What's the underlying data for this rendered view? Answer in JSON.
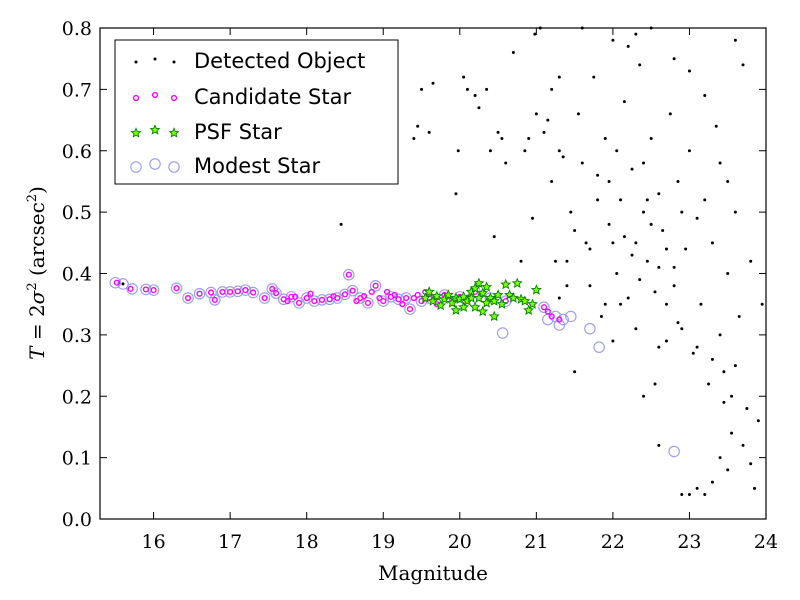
{
  "chart_data": {
    "type": "scatter",
    "xlabel": "Magnitude",
    "ylabel_parts": {
      "prefix": "T",
      "equals": " = 2",
      "sigma": "σ",
      "sigma_exp": "2",
      "unit_open": " (arcsec",
      "unit_exp": "2",
      "unit_close": ")"
    },
    "xlim": [
      15.3,
      24.0
    ],
    "ylim": [
      0.0,
      0.8
    ],
    "xticks": [
      16,
      17,
      18,
      19,
      20,
      21,
      22,
      23,
      24
    ],
    "yticks": [
      0.0,
      0.1,
      0.2,
      0.3,
      0.4,
      0.5,
      0.6,
      0.7,
      0.8
    ],
    "ytick_labels": [
      "0.0",
      "0.1",
      "0.2",
      "0.3",
      "0.4",
      "0.5",
      "0.6",
      "0.7",
      "0.8"
    ],
    "grid": false,
    "legend_position": "top-left",
    "series": [
      {
        "name": "Detected Object",
        "marker": "dot",
        "color": "#000000",
        "points": [
          [
            15.55,
            0.385
          ],
          [
            15.6,
            0.383
          ],
          [
            18.45,
            0.48
          ],
          [
            19.4,
            0.62
          ],
          [
            19.45,
            0.64
          ],
          [
            19.5,
            0.7
          ],
          [
            19.6,
            0.63
          ],
          [
            19.65,
            0.71
          ],
          [
            19.95,
            0.53
          ],
          [
            19.98,
            0.6
          ],
          [
            20.05,
            0.72
          ],
          [
            20.1,
            0.7
          ],
          [
            20.2,
            0.69
          ],
          [
            20.25,
            0.67
          ],
          [
            20.35,
            0.7
          ],
          [
            20.4,
            0.6
          ],
          [
            20.45,
            0.46
          ],
          [
            20.5,
            0.63
          ],
          [
            20.55,
            0.62
          ],
          [
            20.6,
            0.58
          ],
          [
            20.7,
            0.76
          ],
          [
            20.8,
            0.42
          ],
          [
            20.85,
            0.6
          ],
          [
            20.9,
            0.62
          ],
          [
            20.95,
            0.49
          ],
          [
            20.98,
            0.79
          ],
          [
            21.05,
            0.8
          ],
          [
            21.1,
            0.63
          ],
          [
            21.15,
            0.65
          ],
          [
            21.2,
            0.55
          ],
          [
            21.25,
            0.42
          ],
          [
            21.3,
            0.72
          ],
          [
            21.3,
            0.36
          ],
          [
            21.35,
            0.59
          ],
          [
            21.4,
            0.38
          ],
          [
            21.45,
            0.5
          ],
          [
            21.5,
            0.24
          ],
          [
            21.55,
            0.66
          ],
          [
            21.6,
            0.8
          ],
          [
            21.65,
            0.45
          ],
          [
            21.7,
            0.38
          ],
          [
            21.75,
            0.72
          ],
          [
            21.8,
            0.56
          ],
          [
            21.85,
            0.33
          ],
          [
            21.9,
            0.62
          ],
          [
            21.95,
            0.48
          ],
          [
            22.0,
            0.78
          ],
          [
            22.05,
            0.4
          ],
          [
            22.1,
            0.52
          ],
          [
            22.15,
            0.68
          ],
          [
            22.2,
            0.36
          ],
          [
            22.25,
            0.57
          ],
          [
            22.3,
            0.45
          ],
          [
            22.35,
            0.74
          ],
          [
            22.4,
            0.5
          ],
          [
            22.45,
            0.42
          ],
          [
            22.5,
            0.62
          ],
          [
            22.55,
            0.37
          ],
          [
            22.6,
            0.53
          ],
          [
            22.65,
            0.47
          ],
          [
            22.7,
            0.29
          ],
          [
            22.75,
            0.66
          ],
          [
            22.8,
            0.41
          ],
          [
            22.85,
            0.55
          ],
          [
            22.9,
            0.31
          ],
          [
            22.95,
            0.44
          ],
          [
            23.0,
            0.6
          ],
          [
            23.05,
            0.27
          ],
          [
            23.1,
            0.49
          ],
          [
            23.15,
            0.35
          ],
          [
            23.2,
            0.52
          ],
          [
            23.25,
            0.22
          ],
          [
            23.3,
            0.45
          ],
          [
            23.35,
            0.64
          ],
          [
            23.4,
            0.3
          ],
          [
            23.45,
            0.19
          ],
          [
            23.5,
            0.4
          ],
          [
            23.55,
            0.14
          ],
          [
            23.6,
            0.25
          ],
          [
            23.65,
            0.33
          ],
          [
            23.7,
            0.12
          ],
          [
            23.75,
            0.18
          ],
          [
            23.8,
            0.09
          ],
          [
            23.85,
            0.05
          ],
          [
            23.9,
            0.16
          ],
          [
            23.95,
            0.35
          ],
          [
            22.9,
            0.04
          ],
          [
            23.0,
            0.04
          ],
          [
            23.1,
            0.05
          ],
          [
            23.2,
            0.04
          ],
          [
            23.3,
            0.06
          ],
          [
            23.5,
            0.08
          ],
          [
            22.6,
            0.12
          ],
          [
            22.4,
            0.2
          ],
          [
            22.55,
            0.22
          ],
          [
            23.4,
            0.1
          ],
          [
            21.9,
            0.35
          ],
          [
            22.0,
            0.29
          ],
          [
            22.3,
            0.31
          ],
          [
            22.6,
            0.28
          ],
          [
            22.05,
            0.6
          ],
          [
            22.15,
            0.46
          ],
          [
            22.25,
            0.43
          ],
          [
            22.35,
            0.39
          ],
          [
            22.45,
            0.52
          ],
          [
            22.5,
            0.48
          ],
          [
            22.6,
            0.41
          ],
          [
            22.7,
            0.44
          ],
          [
            22.8,
            0.38
          ],
          [
            22.9,
            0.5
          ],
          [
            21.8,
            0.52
          ],
          [
            21.7,
            0.44
          ],
          [
            21.6,
            0.58
          ],
          [
            21.5,
            0.47
          ],
          [
            21.4,
            0.42
          ],
          [
            21.3,
            0.6
          ],
          [
            21.2,
            0.7
          ],
          [
            21.0,
            0.66
          ],
          [
            22.2,
            0.77
          ],
          [
            22.3,
            0.79
          ],
          [
            22.5,
            0.8
          ],
          [
            22.8,
            0.75
          ],
          [
            23.0,
            0.73
          ],
          [
            23.2,
            0.69
          ],
          [
            23.6,
            0.78
          ],
          [
            23.7,
            0.74
          ],
          [
            23.4,
            0.58
          ],
          [
            23.5,
            0.55
          ],
          [
            23.6,
            0.5
          ],
          [
            23.8,
            0.42
          ],
          [
            22.1,
            0.35
          ],
          [
            22.0,
            0.45
          ],
          [
            21.95,
            0.55
          ],
          [
            22.4,
            0.58
          ],
          [
            22.7,
            0.35
          ],
          [
            22.85,
            0.32
          ],
          [
            23.1,
            0.28
          ],
          [
            23.3,
            0.26
          ],
          [
            23.45,
            0.24
          ],
          [
            23.55,
            0.2
          ]
        ]
      },
      {
        "name": "Candidate Star",
        "marker": "circle-small",
        "color": "#ff00ff",
        "points": [
          [
            15.52,
            0.385
          ],
          [
            15.7,
            0.375
          ],
          [
            15.9,
            0.374
          ],
          [
            16.0,
            0.373
          ],
          [
            16.3,
            0.376
          ],
          [
            16.45,
            0.36
          ],
          [
            16.6,
            0.367
          ],
          [
            16.75,
            0.369
          ],
          [
            16.8,
            0.357
          ],
          [
            16.9,
            0.37
          ],
          [
            17.0,
            0.37
          ],
          [
            17.1,
            0.371
          ],
          [
            17.2,
            0.373
          ],
          [
            17.3,
            0.369
          ],
          [
            17.45,
            0.36
          ],
          [
            17.55,
            0.375
          ],
          [
            17.6,
            0.368
          ],
          [
            17.7,
            0.358
          ],
          [
            17.75,
            0.355
          ],
          [
            17.8,
            0.362
          ],
          [
            17.85,
            0.362
          ],
          [
            17.9,
            0.352
          ],
          [
            18.0,
            0.36
          ],
          [
            18.05,
            0.367
          ],
          [
            18.1,
            0.355
          ],
          [
            18.2,
            0.357
          ],
          [
            18.3,
            0.358
          ],
          [
            18.35,
            0.363
          ],
          [
            18.4,
            0.36
          ],
          [
            18.5,
            0.366
          ],
          [
            18.55,
            0.398
          ],
          [
            18.6,
            0.372
          ],
          [
            18.65,
            0.355
          ],
          [
            18.7,
            0.36
          ],
          [
            18.75,
            0.363
          ],
          [
            18.8,
            0.352
          ],
          [
            18.85,
            0.37
          ],
          [
            18.9,
            0.38
          ],
          [
            18.95,
            0.36
          ],
          [
            19.0,
            0.355
          ],
          [
            19.05,
            0.37
          ],
          [
            19.1,
            0.362
          ],
          [
            19.15,
            0.365
          ],
          [
            19.2,
            0.358
          ],
          [
            19.25,
            0.35
          ],
          [
            19.3,
            0.36
          ],
          [
            19.35,
            0.342
          ],
          [
            19.4,
            0.36
          ],
          [
            19.45,
            0.365
          ],
          [
            19.5,
            0.355
          ],
          [
            19.55,
            0.37
          ],
          [
            19.6,
            0.36
          ],
          [
            19.7,
            0.35
          ],
          [
            19.8,
            0.365
          ],
          [
            19.9,
            0.358
          ],
          [
            20.0,
            0.362
          ],
          [
            20.1,
            0.355
          ],
          [
            20.2,
            0.37
          ],
          [
            20.4,
            0.36
          ],
          [
            20.6,
            0.355
          ],
          [
            21.1,
            0.345
          ],
          [
            21.15,
            0.338
          ],
          [
            21.2,
            0.33
          ],
          [
            21.3,
            0.325
          ]
        ]
      },
      {
        "name": "PSF Star",
        "marker": "star",
        "color": "#008000",
        "points": [
          [
            19.55,
            0.36
          ],
          [
            19.6,
            0.37
          ],
          [
            19.65,
            0.355
          ],
          [
            19.7,
            0.363
          ],
          [
            19.75,
            0.348
          ],
          [
            19.8,
            0.358
          ],
          [
            19.85,
            0.365
          ],
          [
            19.9,
            0.352
          ],
          [
            19.95,
            0.36
          ],
          [
            20.0,
            0.358
          ],
          [
            20.05,
            0.362
          ],
          [
            20.1,
            0.355
          ],
          [
            20.15,
            0.37
          ],
          [
            20.2,
            0.376
          ],
          [
            20.25,
            0.384
          ],
          [
            20.3,
            0.368
          ],
          [
            20.35,
            0.378
          ],
          [
            20.4,
            0.36
          ],
          [
            20.45,
            0.355
          ],
          [
            20.5,
            0.365
          ],
          [
            20.55,
            0.35
          ],
          [
            20.6,
            0.382
          ],
          [
            20.65,
            0.365
          ],
          [
            20.7,
            0.36
          ],
          [
            20.75,
            0.384
          ],
          [
            20.8,
            0.358
          ],
          [
            20.85,
            0.355
          ],
          [
            20.9,
            0.34
          ],
          [
            20.95,
            0.35
          ],
          [
            21.0,
            0.373
          ],
          [
            20.2,
            0.345
          ],
          [
            20.3,
            0.338
          ],
          [
            20.45,
            0.33
          ],
          [
            20.15,
            0.36
          ],
          [
            20.05,
            0.345
          ],
          [
            19.95,
            0.34
          ],
          [
            20.35,
            0.352
          ],
          [
            20.25,
            0.36
          ]
        ]
      },
      {
        "name": "Modest Star",
        "marker": "circle-large",
        "color": "#9999ee",
        "points": [
          [
            15.5,
            0.385
          ],
          [
            15.6,
            0.383
          ],
          [
            15.72,
            0.375
          ],
          [
            15.9,
            0.374
          ],
          [
            16.0,
            0.373
          ],
          [
            16.3,
            0.376
          ],
          [
            16.45,
            0.36
          ],
          [
            16.6,
            0.367
          ],
          [
            16.75,
            0.369
          ],
          [
            16.8,
            0.357
          ],
          [
            16.9,
            0.37
          ],
          [
            17.0,
            0.37
          ],
          [
            17.1,
            0.371
          ],
          [
            17.2,
            0.373
          ],
          [
            17.3,
            0.369
          ],
          [
            17.45,
            0.36
          ],
          [
            17.55,
            0.375
          ],
          [
            17.6,
            0.368
          ],
          [
            17.7,
            0.358
          ],
          [
            17.8,
            0.362
          ],
          [
            17.9,
            0.352
          ],
          [
            18.0,
            0.36
          ],
          [
            18.1,
            0.355
          ],
          [
            18.2,
            0.357
          ],
          [
            18.3,
            0.358
          ],
          [
            18.4,
            0.36
          ],
          [
            18.5,
            0.366
          ],
          [
            18.55,
            0.398
          ],
          [
            18.6,
            0.372
          ],
          [
            18.7,
            0.36
          ],
          [
            18.8,
            0.352
          ],
          [
            18.9,
            0.38
          ],
          [
            19.0,
            0.355
          ],
          [
            19.1,
            0.362
          ],
          [
            19.2,
            0.358
          ],
          [
            19.3,
            0.36
          ],
          [
            19.35,
            0.342
          ],
          [
            19.5,
            0.355
          ],
          [
            19.6,
            0.36
          ],
          [
            19.8,
            0.365
          ],
          [
            20.0,
            0.362
          ],
          [
            20.2,
            0.37
          ],
          [
            20.4,
            0.36
          ],
          [
            20.6,
            0.355
          ],
          [
            20.56,
            0.303
          ],
          [
            21.1,
            0.345
          ],
          [
            21.15,
            0.325
          ],
          [
            21.25,
            0.33
          ],
          [
            21.3,
            0.316
          ],
          [
            21.35,
            0.325
          ],
          [
            21.45,
            0.33
          ],
          [
            21.7,
            0.31
          ],
          [
            21.82,
            0.28
          ],
          [
            22.8,
            0.11
          ]
        ]
      }
    ]
  },
  "legend": {
    "entries": [
      {
        "label": "Detected Object",
        "marker": "dot",
        "color": "#000000"
      },
      {
        "label": "Candidate Star",
        "marker": "circle-small",
        "color": "#ff00ff"
      },
      {
        "label": "PSF Star",
        "marker": "star",
        "color": "#008000"
      },
      {
        "label": "Modest Star",
        "marker": "circle-large",
        "color": "#9999ee"
      }
    ]
  }
}
